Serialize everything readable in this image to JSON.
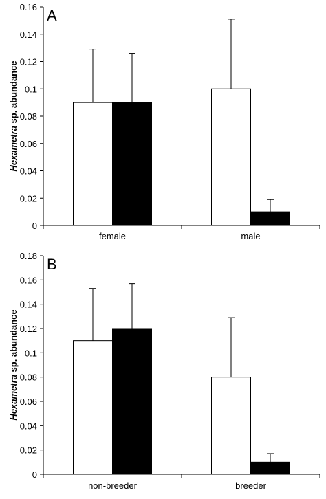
{
  "chart_data": [
    {
      "type": "bar",
      "panel_label": "A",
      "ylabel_italic": "Hexametra",
      "ylabel_rest": " sp. abundance",
      "categories": [
        "female",
        "male"
      ],
      "ylim": [
        0,
        0.16
      ],
      "yticks": [
        "0",
        "0.02",
        "0.04",
        "0.06",
        "0.08",
        "0.1",
        "0.12",
        "0.14",
        "0.16"
      ],
      "series": [
        {
          "color": "#ffffff",
          "values": [
            0.09,
            0.1
          ],
          "error_upper": [
            0.129,
            0.151
          ]
        },
        {
          "color": "#000000",
          "values": [
            0.09,
            0.01
          ],
          "error_upper": [
            0.126,
            0.019
          ]
        }
      ],
      "grid": false
    },
    {
      "type": "bar",
      "panel_label": "B",
      "ylabel_italic": "Hexametra",
      "ylabel_rest": " sp. abundance",
      "categories": [
        "non-breeder",
        "breeder"
      ],
      "ylim": [
        0,
        0.18
      ],
      "yticks": [
        "0",
        "0.02",
        "0.04",
        "0.06",
        "0.08",
        "0.1",
        "0.12",
        "0.14",
        "0.16",
        "0.18"
      ],
      "series": [
        {
          "color": "#ffffff",
          "values": [
            0.11,
            0.08
          ],
          "error_upper": [
            0.153,
            0.129
          ]
        },
        {
          "color": "#000000",
          "values": [
            0.12,
            0.01
          ],
          "error_upper": [
            0.157,
            0.017
          ]
        }
      ],
      "grid": false
    }
  ]
}
